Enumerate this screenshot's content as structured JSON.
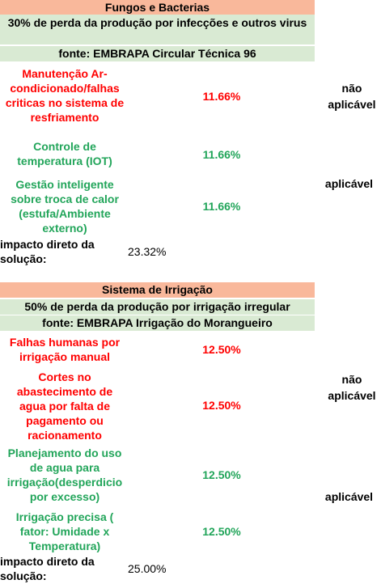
{
  "colors": {
    "header_bg": "#f9b89b",
    "subheader_bg": "#d9ead3",
    "negative_text": "#ff0000",
    "positive_text": "#22a55a"
  },
  "section1": {
    "title": "Fungos e Bacterias",
    "loss": "30% de perda da produção por infecções e outros virus",
    "source": "fonte: EMBRAPA Circular Técnica 96",
    "rows": [
      {
        "label": "Manutenção Ar-condicionado/falhas criticas no sistema de resfriamento",
        "pct": "11.66%",
        "status": "negative"
      },
      {
        "label": "Controle de temperatura (IOT)",
        "pct": "11.66%",
        "status": "positive"
      },
      {
        "label": "Gestão inteligente sobre troca de calor (estufa/Ambiente externo)",
        "pct": "11.66%",
        "status": "positive"
      }
    ],
    "not_applicable": "não aplicável",
    "applicable": "aplicável",
    "impact_label": "impacto direto da solução:",
    "impact_value": "23.32%"
  },
  "section2": {
    "title": "Sistema de Irrigação",
    "loss": "50% de perda da produção por irrigação irregular",
    "source": "fonte: EMBRAPA Irrigação do Morangueiro",
    "rows": [
      {
        "label": "Falhas humanas por irrigação manual",
        "pct": "12.50%",
        "status": "negative"
      },
      {
        "label": "Cortes no abastecimento de agua por falta de pagamento ou racionamento",
        "pct": "12.50%",
        "status": "negative"
      },
      {
        "label": "Planejamento do uso de agua para irrigação(desperdicio por excesso)",
        "pct": "12.50%",
        "status": "positive"
      },
      {
        "label": "Irrigação precisa ( fator: Umidade x Temperatura)",
        "pct": "12.50%",
        "status": "positive"
      }
    ],
    "not_applicable": "não aplicável",
    "applicable": "aplicável",
    "impact_label": "impacto direto da solução:",
    "impact_value": "25.00%"
  }
}
